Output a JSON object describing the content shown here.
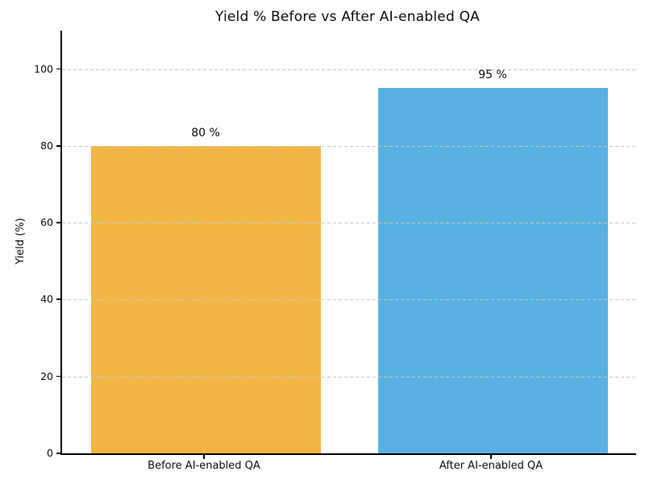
{
  "chart_data": {
    "type": "bar",
    "title": "Yield % Before vs After AI-enabled QA",
    "categories": [
      "Before AI-enabled QA",
      "After AI-enabled QA"
    ],
    "values": [
      80,
      95
    ],
    "value_labels": [
      "80 %",
      "95 %"
    ],
    "bar_colors": [
      "#F2B444",
      "#58B1E2"
    ],
    "xlabel": "",
    "ylabel": "Yield (%)",
    "ylim": [
      0,
      110
    ],
    "yticks": [
      0,
      20,
      40,
      60,
      80,
      100
    ],
    "grid": "horizontal dashed, drawn over bars",
    "legend": "none",
    "colors": {
      "grid": "#c8c8c8",
      "axis": "#000000",
      "text": "#0d0d0d",
      "background": "#ffffff"
    }
  }
}
